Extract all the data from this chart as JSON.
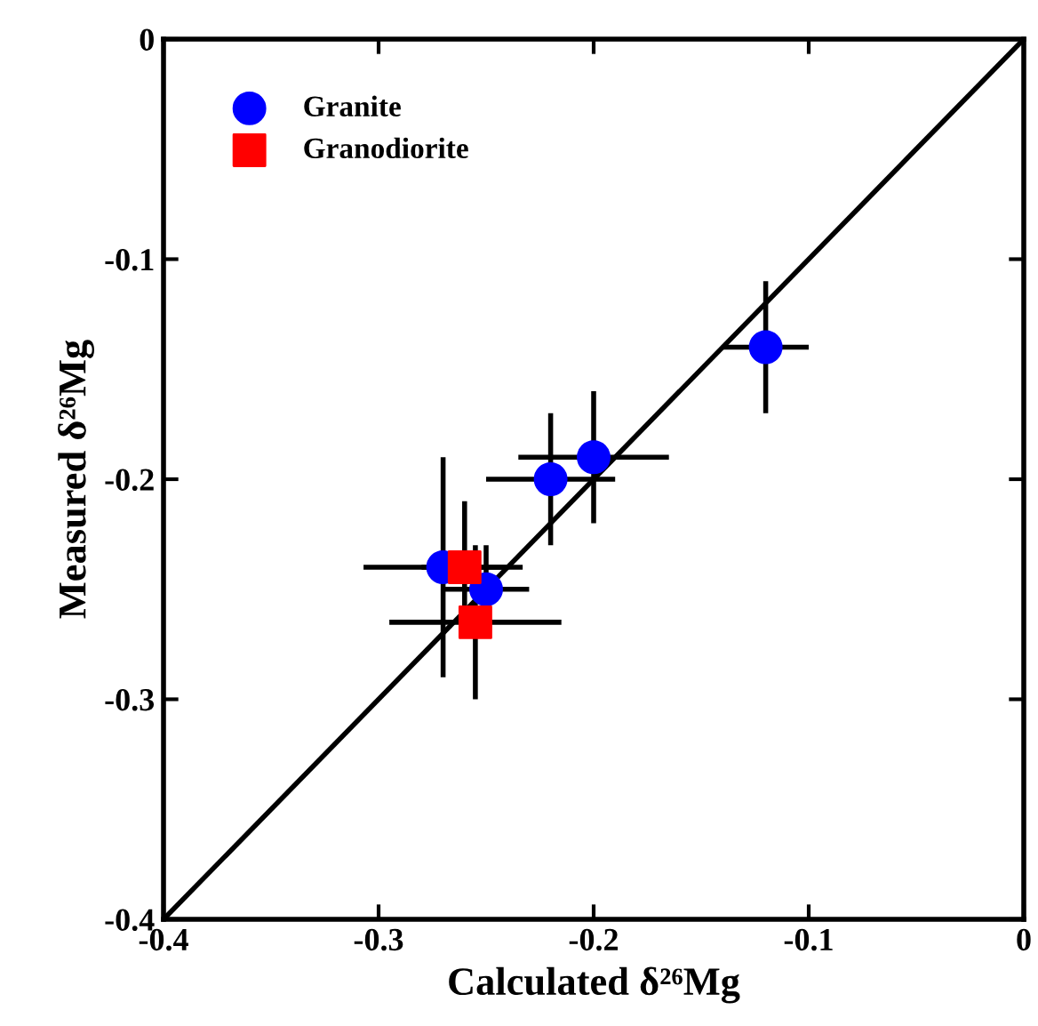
{
  "chart_data": {
    "type": "scatter",
    "xlabel": "Calculated δ²⁶Mg",
    "ylabel": "Measured δ²⁶Mg",
    "xlim": [
      -0.4,
      0
    ],
    "ylim": [
      -0.4,
      0
    ],
    "xticks": [
      -0.4,
      -0.3,
      -0.2,
      -0.1,
      0
    ],
    "yticks": [
      -0.4,
      -0.3,
      -0.2,
      -0.1,
      0
    ],
    "grid": false,
    "legend": "top left",
    "series": [
      {
        "type": "line",
        "color": "#000000",
        "x": [
          -0.4,
          0
        ],
        "values": [
          -0.4,
          0
        ],
        "marker": "none",
        "line_style": "solid"
      },
      {
        "name": "Granite",
        "color": "#0000ff",
        "marker": "circle",
        "x": [
          -0.12,
          -0.2,
          -0.22,
          -0.25,
          -0.27
        ],
        "values": [
          -0.14,
          -0.19,
          -0.2,
          -0.25,
          -0.24
        ],
        "xerrors": [
          0.02,
          0.035,
          0.03,
          0.02,
          0.037
        ],
        "errors": [
          0.03,
          0.03,
          0.03,
          0.02,
          0.05
        ]
      },
      {
        "name": "Granodiorite",
        "color": "#ff0000",
        "marker": "square",
        "x": [
          -0.26,
          -0.255
        ],
        "values": [
          -0.24,
          -0.265
        ],
        "xerrors": [
          0.02,
          0.04
        ],
        "errors": [
          0.03,
          0.035
        ]
      }
    ]
  }
}
